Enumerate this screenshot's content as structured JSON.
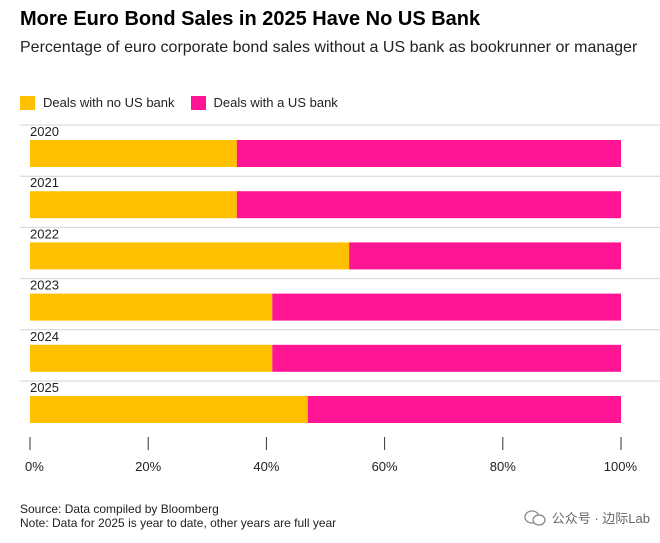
{
  "title": "More Euro Bond Sales in 2025 Have No US Bank",
  "subtitle": "Percentage of euro corporate bond sales without a US bank as bookrunner or manager",
  "colors": {
    "no_us_bank": "#FFC000",
    "with_us_bank": "#FF1493"
  },
  "source": {
    "line1": "Source: Data compiled by Bloomberg",
    "line2": "Note: Data for 2025 is year to date, other years are full year"
  },
  "watermark": "公众号 · 边际Lab",
  "chart_data": {
    "type": "bar",
    "orientation": "horizontal",
    "stacked": true,
    "categories": [
      "2020",
      "2021",
      "2022",
      "2023",
      "2024",
      "2025"
    ],
    "series": [
      {
        "name": "Deals with no US bank",
        "values": [
          35,
          35,
          54,
          41,
          41,
          47
        ]
      },
      {
        "name": "Deals with a US bank",
        "values": [
          65,
          65,
          46,
          59,
          59,
          53
        ]
      }
    ],
    "x_ticks": [
      "0%",
      "20%",
      "40%",
      "60%",
      "80%",
      "100%"
    ],
    "xlim": [
      0,
      100
    ],
    "legend_position": "top-left",
    "grid": false
  }
}
